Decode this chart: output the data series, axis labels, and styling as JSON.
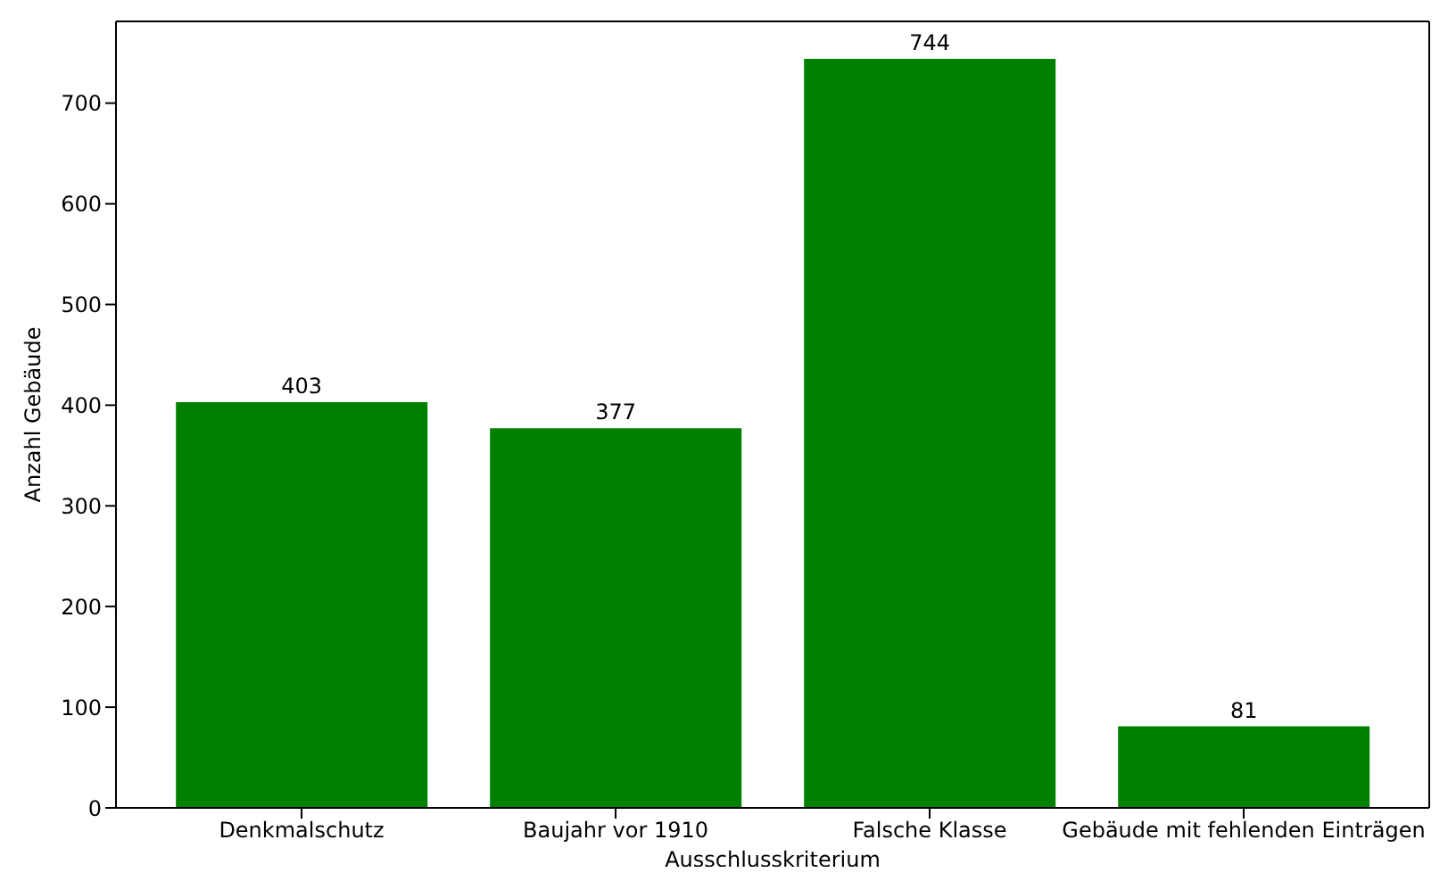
{
  "chart_data": {
    "type": "bar",
    "xlabel": "Ausschlusskriterium",
    "ylabel": "Anzahl Gebäude",
    "categories": [
      "Denkmalschutz",
      "Baujahr vor 1910",
      "Falsche Klasse",
      "Gebäude mit fehlenden Einträgen"
    ],
    "values": [
      403,
      377,
      744,
      81
    ],
    "color": "#008000",
    "ylim": [
      0,
      781.2
    ],
    "yticks": [
      0,
      100,
      200,
      300,
      400,
      500,
      600,
      700
    ],
    "data_labels": true,
    "grid": false,
    "legend": false
  }
}
